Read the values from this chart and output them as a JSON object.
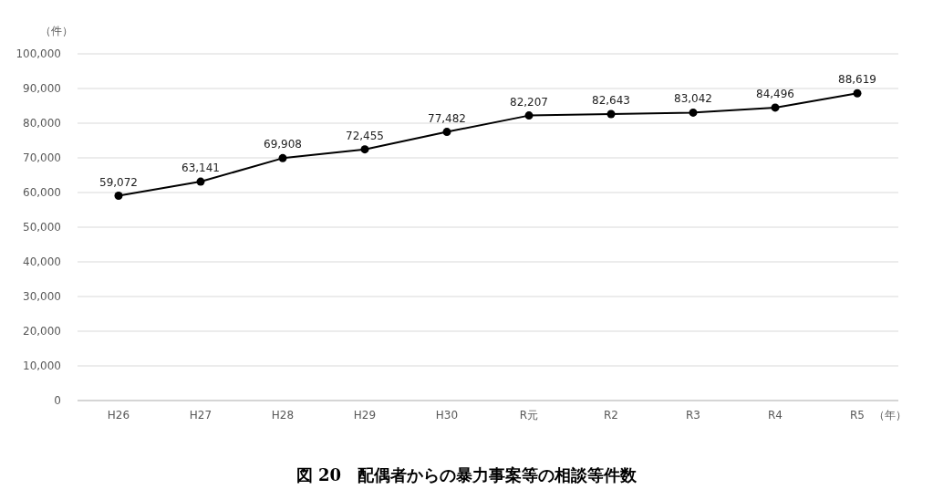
{
  "chart_data": {
    "type": "line",
    "title": "図 20　配偶者からの暴力事案等の相談等件数",
    "ylabel": "（件）",
    "xlabel": "（年）",
    "categories": [
      "H26",
      "H27",
      "H28",
      "H29",
      "H30",
      "R元",
      "R2",
      "R3",
      "R4",
      "R5"
    ],
    "series": [
      {
        "color": "#000000",
        "values": [
          59072,
          63141,
          69908,
          72455,
          77482,
          82207,
          82643,
          83042,
          84496,
          88619
        ],
        "value_labels": [
          "59,072",
          "63,141",
          "69,908",
          "72,455",
          "77,482",
          "82,207",
          "82,643",
          "83,042",
          "84,496",
          "88,619"
        ]
      }
    ],
    "ylim": [
      0,
      100000
    ],
    "yticks": [
      0,
      {
        "value": 10000,
        "label": "10,000"
      },
      {
        "value": 20000,
        "label": "20,000"
      },
      {
        "value": 30000,
        "label": "30,000"
      },
      {
        "value": 40000,
        "label": "40,000"
      },
      {
        "value": 50000,
        "label": "50,000"
      },
      {
        "value": 60000,
        "label": "60,000"
      },
      {
        "value": 70000,
        "label": "70,000"
      },
      {
        "value": 80000,
        "label": "80,000"
      },
      {
        "value": 90000,
        "label": "90,000"
      },
      {
        "value": 100000,
        "label": "100,000"
      }
    ],
    "grid": "y",
    "marker": "circle",
    "line_style": "solid"
  }
}
